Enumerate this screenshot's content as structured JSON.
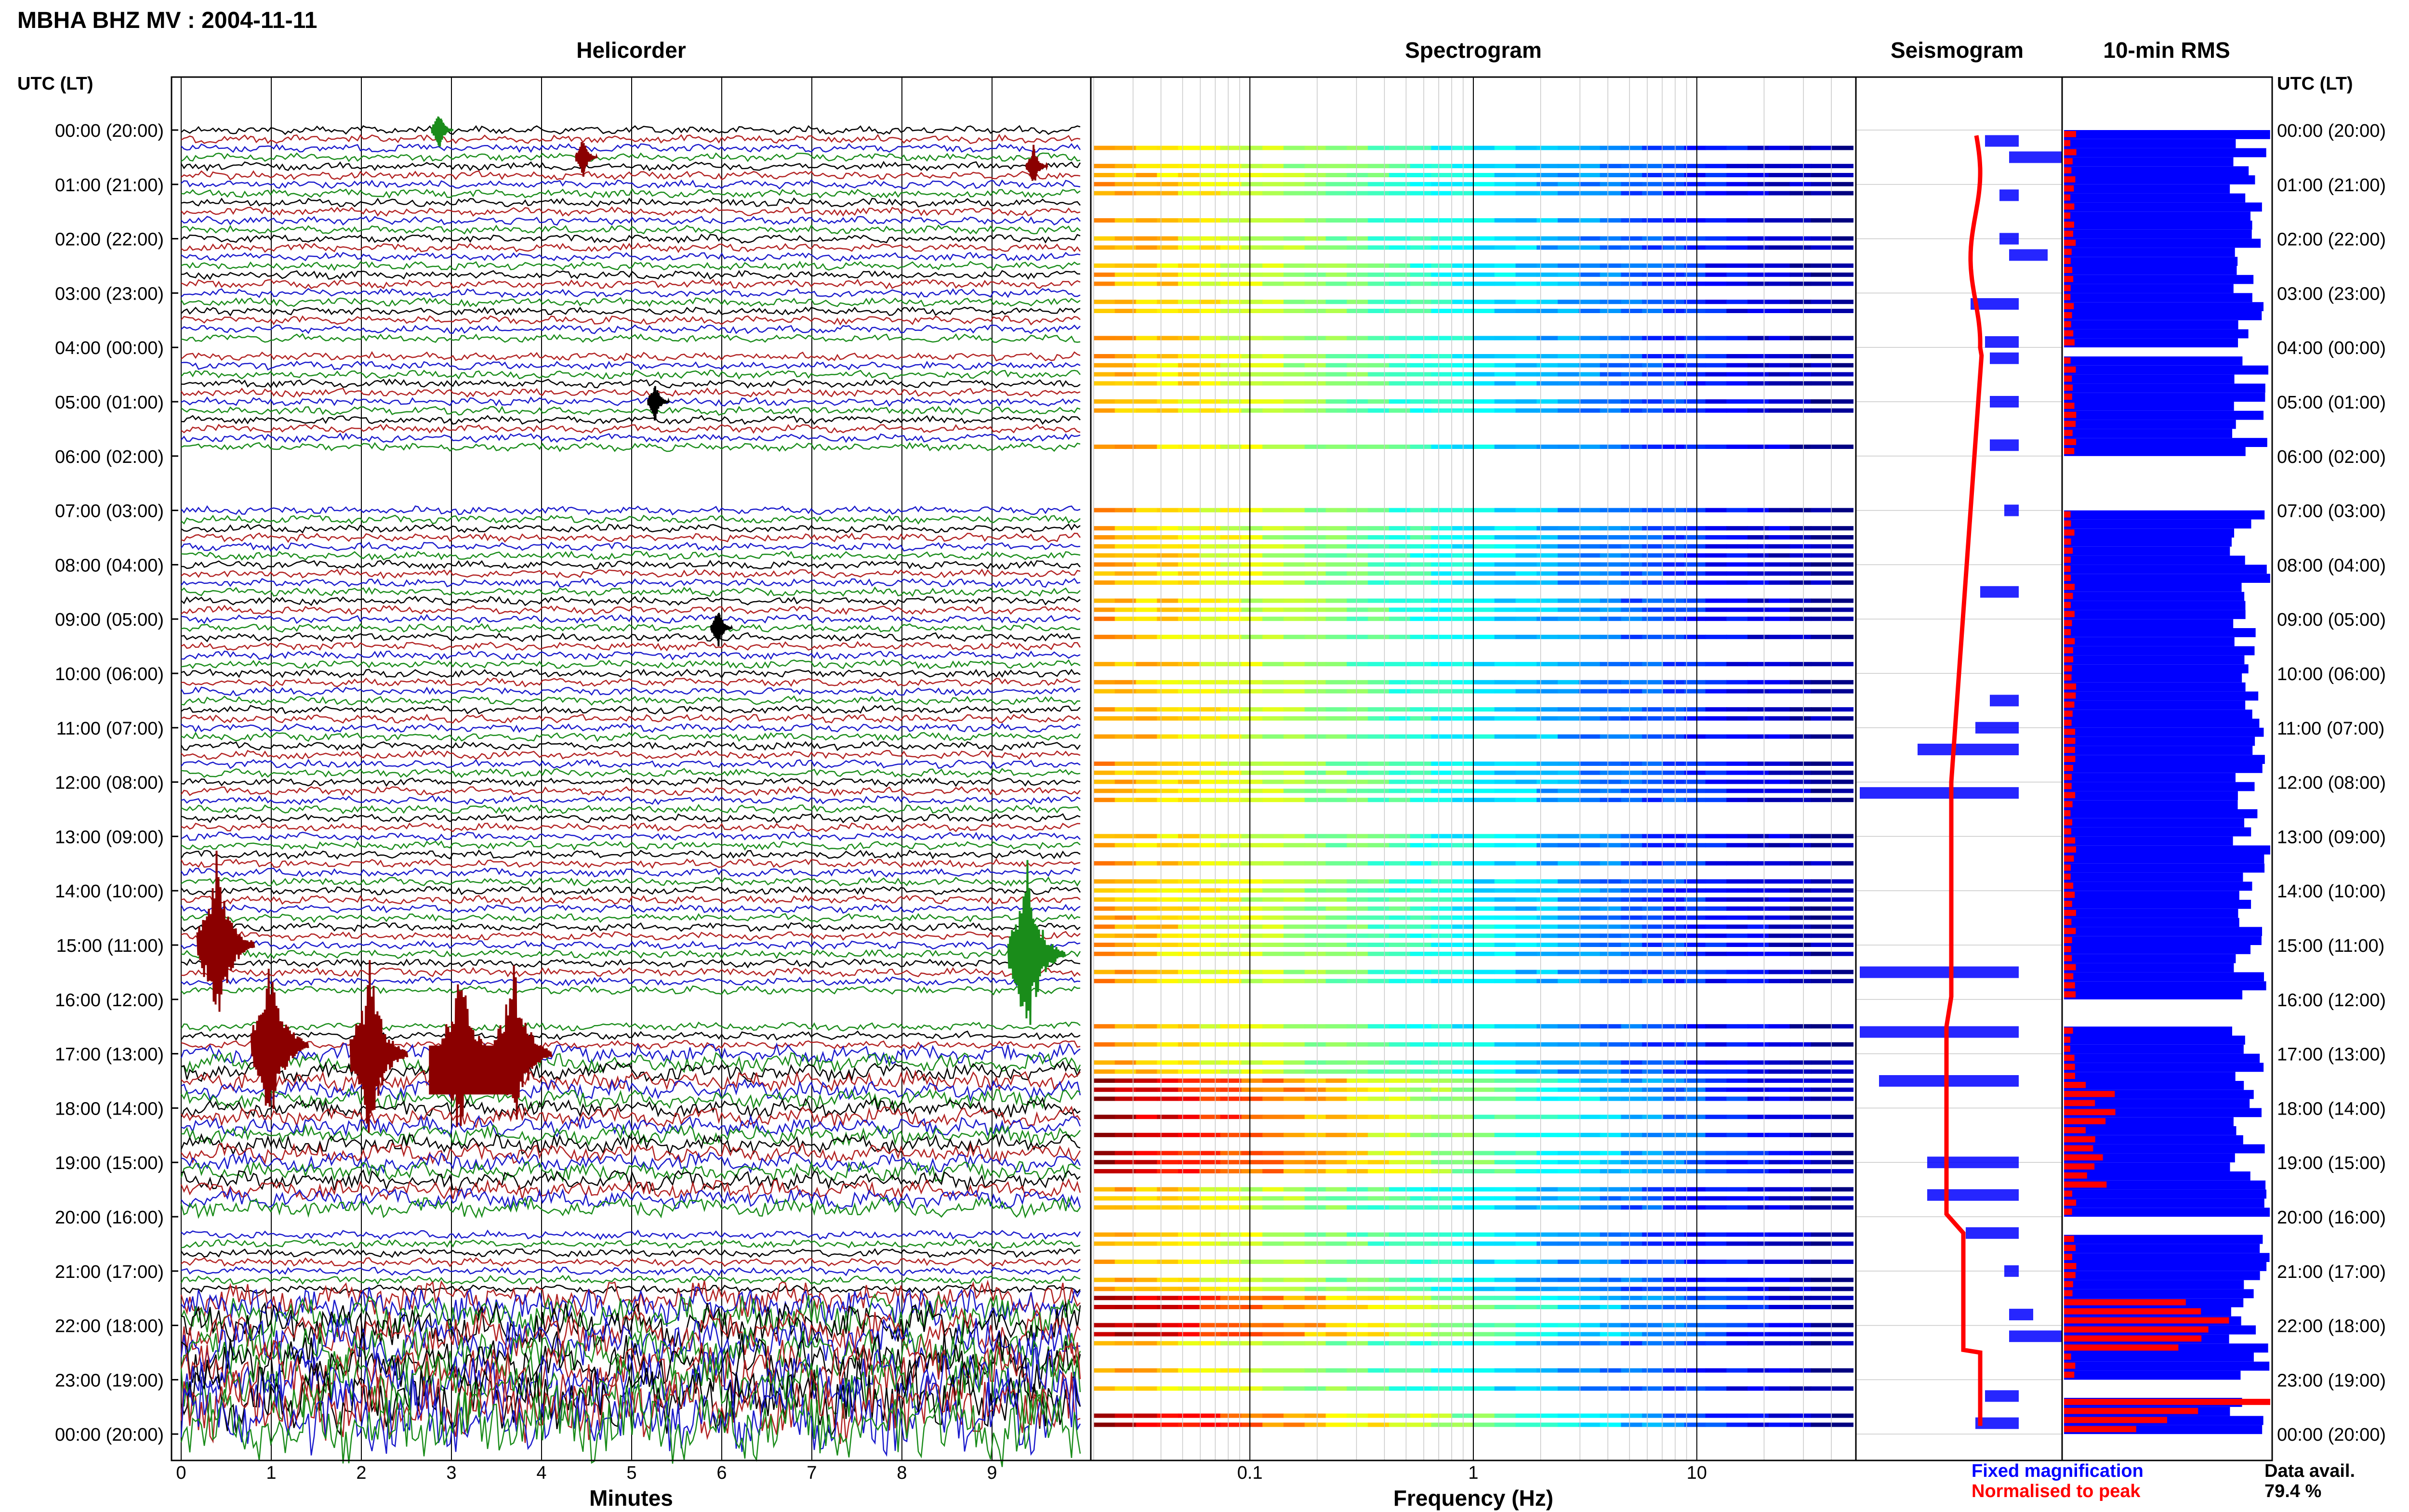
{
  "header": {
    "title": "MBHA BHZ MV : 2004-11-11",
    "utc_label_left": "UTC (LT)",
    "utc_label_right": "UTC (LT)"
  },
  "panels": {
    "helicorder": "Helicorder",
    "spectrogram": "Spectrogram",
    "seismogram": "Seismogram",
    "rms": "10-min RMS"
  },
  "time_labels": [
    "00:00 (20:00)",
    "01:00 (21:00)",
    "02:00 (22:00)",
    "03:00 (23:00)",
    "04:00 (00:00)",
    "05:00 (01:00)",
    "06:00 (02:00)",
    "07:00 (03:00)",
    "08:00 (04:00)",
    "09:00 (05:00)",
    "10:00 (06:00)",
    "11:00 (07:00)",
    "12:00 (08:00)",
    "13:00 (09:00)",
    "14:00 (10:00)",
    "15:00 (11:00)",
    "16:00 (12:00)",
    "17:00 (13:00)",
    "18:00 (14:00)",
    "19:00 (15:00)",
    "20:00 (16:00)",
    "21:00 (17:00)",
    "22:00 (18:00)",
    "23:00 (19:00)",
    "00:00 (20:00)"
  ],
  "footer": {
    "minutes_label": "Minutes",
    "frequency_label": "Frequency (Hz)",
    "legend_fixed": "Fixed magnification",
    "legend_normalised": "Normalised to peak",
    "data_avail_label": "Data avail.",
    "data_avail_value": "79.4 %"
  },
  "colors": {
    "trace_cycle": [
      "#000000",
      "#b22222",
      "#1a1acc",
      "#1a8c1a"
    ],
    "event": "#8b0000",
    "fixed_magnification": "#0000ff",
    "normalised_to_peak": "#ff0000",
    "grid": "#c8c8c8"
  },
  "chart_data": [
    {
      "type": "line",
      "name": "Helicorder",
      "xlabel": "Minutes",
      "x_ticks": [
        "0",
        "1",
        "2",
        "3",
        "4",
        "5",
        "6",
        "7",
        "8",
        "9"
      ],
      "xlim": [
        0,
        10
      ],
      "rows_per_hour": 6,
      "data_gaps_utc": [
        [
          "04:00",
          "04:10"
        ],
        [
          "06:00",
          "07:00"
        ],
        [
          "16:00",
          "16:30"
        ],
        [
          "20:00",
          "20:20"
        ],
        [
          "23:10",
          "23:10"
        ]
      ],
      "events": [
        {
          "utc": "00:00",
          "minute": 2.9,
          "color": "#1a8c1a"
        },
        {
          "utc": "00:30",
          "minute": 4.5,
          "color": "#8b0000"
        },
        {
          "utc": "00:40",
          "minute": 9.5,
          "color": "#8b0000"
        },
        {
          "utc": "05:00",
          "minute": 5.3,
          "color": "#000000"
        },
        {
          "utc": "09:10",
          "minute": 6.0,
          "color": "#000000"
        },
        {
          "utc": "15:00",
          "minute": 0.5,
          "color": "#8b0000"
        },
        {
          "utc": "15:10",
          "minute": 9.5,
          "color": "#1a8c1a"
        },
        {
          "utc": "16:50",
          "minute": 1.1,
          "color": "#8b0000"
        },
        {
          "utc": "17:00",
          "minute": 2.2,
          "color": "#8b0000"
        },
        {
          "utc": "17:00",
          "minute": 3.2,
          "color": "#8b0000"
        },
        {
          "utc": "17:00",
          "minute": 3.8,
          "color": "#8b0000"
        }
      ]
    },
    {
      "type": "heatmap",
      "name": "Spectrogram",
      "xlabel": "Frequency (Hz)",
      "x_scale": "log",
      "xlim": [
        0.02,
        50
      ],
      "x_ticks": [
        "0.1",
        "1",
        "10"
      ],
      "colormap": "jet"
    },
    {
      "type": "line",
      "name": "Seismogram",
      "series": [
        {
          "name": "Fixed magnification",
          "color": "#0000ff"
        },
        {
          "name": "Normalised to peak",
          "color": "#ff0000"
        }
      ]
    },
    {
      "type": "bar",
      "name": "10-min RMS",
      "series": [
        {
          "name": "Fixed magnification",
          "color": "#0000ff"
        },
        {
          "name": "Normalised to peak",
          "color": "#ff0000"
        }
      ],
      "data_available_percent": 79.4,
      "normalised_peaks": [
        {
          "utc": "17:50",
          "value": 0.15
        },
        {
          "utc": "21:50",
          "value": 0.8
        },
        {
          "utc": "22:00",
          "value": 0.7
        },
        {
          "utc": "23:20",
          "value": 1.0
        }
      ]
    }
  ]
}
